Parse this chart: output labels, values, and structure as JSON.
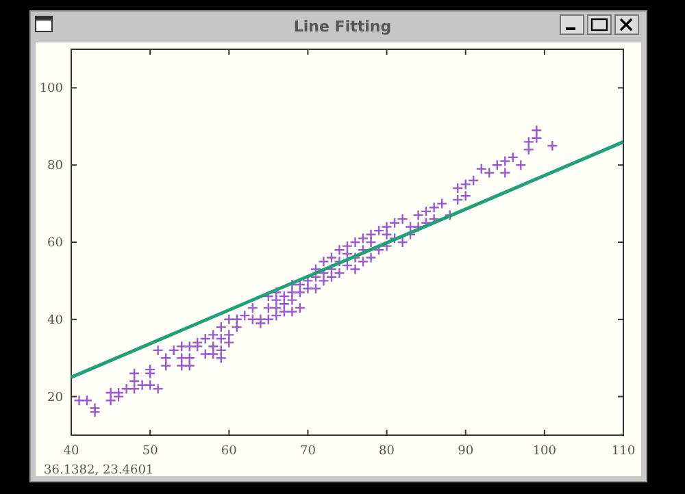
{
  "chart_data": {
    "type": "scatter",
    "title": "Line Fitting",
    "xlim": [
      40,
      110
    ],
    "ylim": [
      10,
      110
    ],
    "xticks": [
      40,
      50,
      60,
      70,
      80,
      90,
      100,
      110
    ],
    "yticks": [
      20,
      40,
      60,
      80,
      100
    ],
    "grid": false,
    "annotations": [
      "36.1382,  23.4601"
    ],
    "series": [
      {
        "marker": "cross",
        "color": "#9b59d0",
        "x": [
          41,
          42,
          43,
          43,
          45,
          45,
          46,
          46,
          47,
          48,
          48,
          48,
          49,
          50,
          50,
          50,
          51,
          51,
          52,
          52,
          53,
          54,
          54,
          54,
          55,
          55,
          55,
          56,
          56,
          57,
          57,
          58,
          58,
          58,
          59,
          59,
          59,
          59,
          60,
          60,
          60,
          61,
          61,
          62,
          63,
          63,
          64,
          64,
          65,
          65,
          65,
          66,
          66,
          66,
          66,
          67,
          67,
          67,
          68,
          68,
          68,
          68,
          69,
          69,
          69,
          70,
          70,
          71,
          71,
          71,
          72,
          72,
          72,
          73,
          73,
          73,
          74,
          74,
          74,
          75,
          75,
          75,
          76,
          76,
          76,
          77,
          77,
          77,
          78,
          78,
          78,
          79,
          79,
          80,
          80,
          80,
          81,
          81,
          82,
          82,
          83,
          83,
          84,
          84,
          85,
          85,
          86,
          86,
          87,
          88,
          89,
          89,
          90,
          90,
          91,
          92,
          93,
          94,
          95,
          95,
          96,
          97,
          98,
          98,
          99,
          99,
          101
        ],
        "values": [
          19,
          19,
          17,
          16,
          21,
          19,
          21,
          20,
          22,
          22,
          24,
          26,
          23,
          23,
          26,
          27,
          22,
          32,
          28,
          30,
          32,
          28,
          30,
          33,
          28,
          30,
          33,
          33,
          34,
          31,
          35,
          31,
          33,
          36,
          30,
          32,
          35,
          38,
          34,
          36,
          40,
          38,
          40,
          41,
          40,
          43,
          39,
          40,
          40,
          43,
          46,
          41,
          43,
          45,
          47,
          42,
          44,
          46,
          42,
          45,
          47,
          49,
          43,
          47,
          49,
          48,
          50,
          48,
          51,
          53,
          50,
          52,
          55,
          51,
          53,
          56,
          52,
          55,
          58,
          54,
          57,
          59,
          53,
          56,
          60,
          55,
          58,
          61,
          56,
          60,
          62,
          58,
          63,
          59,
          62,
          64,
          61,
          65,
          60,
          66,
          62,
          64,
          64,
          67,
          65,
          68,
          66,
          69,
          70,
          67,
          71,
          74,
          72,
          75,
          76,
          79,
          78,
          80,
          78,
          81,
          82,
          80,
          84,
          86,
          87,
          89,
          85
        ]
      },
      {
        "type": "line",
        "marker": "none",
        "color": "#23a07a",
        "x": [
          40,
          110
        ],
        "values": [
          25,
          86
        ]
      }
    ]
  }
}
